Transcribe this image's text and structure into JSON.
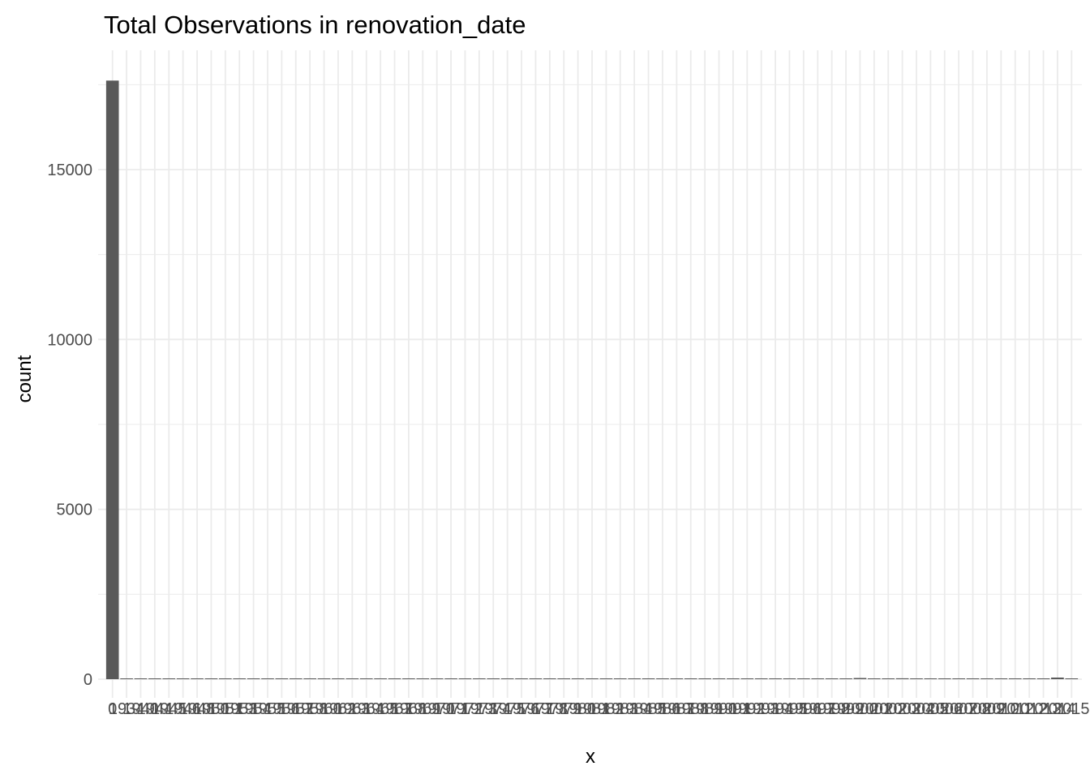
{
  "chart_data": {
    "type": "bar",
    "title": "Total Observations in  renovation_date",
    "xlabel": "x",
    "ylabel": "count",
    "ylim": [
      0,
      18100
    ],
    "y_ticks": [
      0,
      5000,
      10000,
      15000
    ],
    "y_tick_labels": [
      "0",
      "5000",
      "10000",
      "15000"
    ],
    "grid": true,
    "bar_color": "#595959",
    "grid_color": "#ebebeb",
    "categories": [
      "0",
      "1934",
      "1940",
      "1944",
      "1945",
      "1946",
      "1948",
      "1950",
      "1951",
      "1953",
      "1954",
      "1955",
      "1956",
      "1957",
      "1958",
      "1960",
      "1962",
      "1963",
      "1964",
      "1965",
      "1967",
      "1968",
      "1969",
      "1970",
      "1971",
      "1972",
      "1973",
      "1974",
      "1975",
      "1976",
      "1977",
      "1978",
      "1979",
      "1980",
      "1981",
      "1982",
      "1983",
      "1984",
      "1985",
      "1986",
      "1987",
      "1988",
      "1989",
      "1990",
      "1991",
      "1992",
      "1993",
      "1994",
      "1995",
      "1996",
      "1997",
      "1998",
      "1999",
      "2000",
      "2001",
      "2002",
      "2003",
      "2004",
      "2005",
      "2006",
      "2007",
      "2008",
      "2009",
      "2010",
      "2011",
      "2012",
      "2013",
      "2014",
      "2015"
    ],
    "values": [
      17620,
      1,
      1,
      2,
      3,
      2,
      1,
      2,
      1,
      3,
      3,
      3,
      1,
      3,
      4,
      3,
      2,
      4,
      4,
      5,
      2,
      4,
      3,
      5,
      1,
      1,
      4,
      3,
      4,
      3,
      5,
      3,
      4,
      10,
      4,
      5,
      9,
      4,
      10,
      8,
      11,
      5,
      12,
      15,
      8,
      10,
      11,
      11,
      9,
      11,
      8,
      11,
      11,
      35,
      11,
      11,
      26,
      15,
      22,
      11,
      23,
      12,
      12,
      14,
      10,
      9,
      19,
      48,
      5
    ]
  }
}
